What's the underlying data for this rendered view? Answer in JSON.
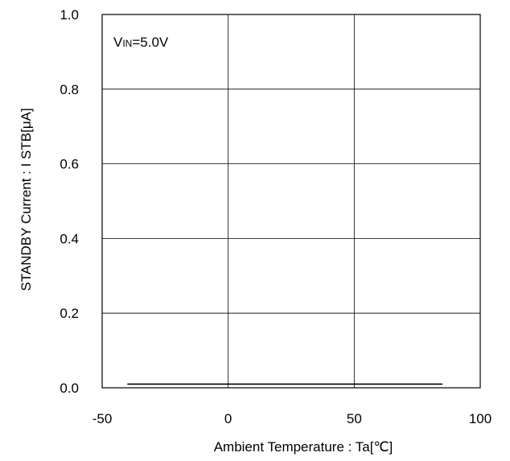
{
  "chart_data": {
    "type": "line",
    "title": "",
    "xlabel": "Ambient Temperature : Ta[℃]",
    "ylabel": "STANDBY Current : I  STB[μA]",
    "xlim": [
      -50,
      100
    ],
    "ylim": [
      0.0,
      1.0
    ],
    "x_ticks": [
      "-50",
      "0",
      "50",
      "100"
    ],
    "y_ticks": [
      "0.0",
      "0.2",
      "0.4",
      "0.6",
      "0.8",
      "1.0"
    ],
    "grid": true,
    "annotation": {
      "main": "V",
      "sub": "IN",
      "rest": "=5.0V"
    },
    "series": [
      {
        "x": [
          -40,
          85
        ],
        "y": [
          0.01,
          0.01
        ]
      }
    ]
  }
}
